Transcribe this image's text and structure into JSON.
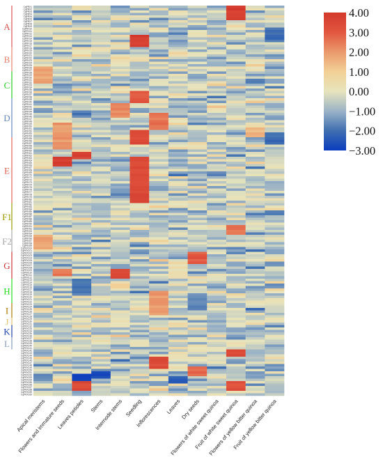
{
  "chart_data": {
    "type": "heatmap",
    "title": "",
    "xlabel": "",
    "ylabel": "",
    "columns": [
      "Apical meristems",
      "Flowers and immature seeds",
      "Leaves petioles",
      "Stems",
      "Internode stems",
      "Seedling",
      "Inflorescences",
      "Leaves",
      "Dry seeds",
      "Flowers of white sweet quinoa",
      "Fruit of white sweet quinoa",
      "Flowers of yellow bitter quinoa",
      "Fruit of yellow bitter quinoa"
    ],
    "row_count": 160,
    "row_label_prefix": "CqPRX",
    "groups": [
      {
        "label": "A",
        "color": "#d9534f",
        "start_row": 0,
        "end_row": 16
      },
      {
        "label": "B",
        "color": "#e8826b",
        "start_row": 17,
        "end_row": 26
      },
      {
        "label": "C",
        "color": "#22cc22",
        "start_row": 27,
        "end_row": 37
      },
      {
        "label": "D",
        "color": "#6688bb",
        "start_row": 38,
        "end_row": 53
      },
      {
        "label": "E",
        "color": "#e06050",
        "start_row": 54,
        "end_row": 80
      },
      {
        "label": "F1",
        "color": "#999900",
        "start_row": 81,
        "end_row": 91
      },
      {
        "label": "F2",
        "color": "#a8a8a8",
        "start_row": 92,
        "end_row": 100
      },
      {
        "label": "G",
        "color": "#cc3333",
        "start_row": 101,
        "end_row": 111
      },
      {
        "label": "H",
        "color": "#22dd22",
        "start_row": 112,
        "end_row": 121
      },
      {
        "label": "I",
        "color": "#aa7700",
        "start_row": 122,
        "end_row": 127
      },
      {
        "label": "J",
        "color": "#e0c070",
        "start_row": 128,
        "end_row": 130
      },
      {
        "label": "K",
        "color": "#2244aa",
        "start_row": 131,
        "end_row": 135
      },
      {
        "label": "L",
        "color": "#8899bb",
        "start_row": 136,
        "end_row": 140
      }
    ],
    "color_scale": {
      "min": -3.0,
      "max": 4.0,
      "ticks": [
        "4.00",
        "3.00",
        "2.00",
        "1.00",
        "0.00",
        "−1.00",
        "−2.00",
        "−3.00"
      ],
      "stops": [
        {
          "value": -3.0,
          "color": "#0a3cbe"
        },
        {
          "value": -2.0,
          "color": "#3f6fb0"
        },
        {
          "value": -1.0,
          "color": "#9bb3c6"
        },
        {
          "value": 0.0,
          "color": "#e7e4bd"
        },
        {
          "value": 1.0,
          "color": "#f2d096"
        },
        {
          "value": 2.0,
          "color": "#ea9a6c"
        },
        {
          "value": 3.0,
          "color": "#e2563f"
        },
        {
          "value": 4.0,
          "color": "#d2392c"
        }
      ]
    },
    "high_spots": [
      {
        "col": 5,
        "rows": [
          12,
          16
        ],
        "value": 3.8
      },
      {
        "col": 5,
        "rows": [
          51,
          56
        ],
        "value": 3.5
      },
      {
        "col": 5,
        "rows": [
          62,
          80
        ],
        "value": 3.4
      },
      {
        "col": 5,
        "rows": [
          35,
          39
        ],
        "value": 3.0
      },
      {
        "col": 1,
        "rows": [
          62,
          65
        ],
        "value": 3.8
      },
      {
        "col": 1,
        "rows": [
          48,
          58
        ],
        "value": 2.0
      },
      {
        "col": 2,
        "rows": [
          60,
          62
        ],
        "value": 3.6
      },
      {
        "col": 0,
        "rows": [
          25,
          31
        ],
        "value": 1.8
      },
      {
        "col": 0,
        "rows": [
          94,
          99
        ],
        "value": 1.8
      },
      {
        "col": 4,
        "rows": [
          108,
          111
        ],
        "value": 3.5
      },
      {
        "col": 4,
        "rows": [
          40,
          45
        ],
        "value": 2.2
      },
      {
        "col": 6,
        "rows": [
          44,
          50
        ],
        "value": 2.5
      },
      {
        "col": 6,
        "rows": [
          117,
          126
        ],
        "value": 2.0
      },
      {
        "col": 6,
        "rows": [
          144,
          148
        ],
        "value": 3.4
      },
      {
        "col": 8,
        "rows": [
          101,
          105
        ],
        "value": 3.0
      },
      {
        "col": 8,
        "rows": [
          148,
          151
        ],
        "value": 2.8
      },
      {
        "col": 10,
        "rows": [
          0,
          5
        ],
        "value": 3.8
      },
      {
        "col": 10,
        "rows": [
          90,
          93
        ],
        "value": 2.5
      },
      {
        "col": 10,
        "rows": [
          141,
          143
        ],
        "value": 3.3
      },
      {
        "col": 10,
        "rows": [
          154,
          157
        ],
        "value": 3.2
      },
      {
        "col": 2,
        "rows": [
          154,
          157
        ],
        "value": 3.4
      },
      {
        "col": 11,
        "rows": [
          50,
          53
        ],
        "value": 1.5
      },
      {
        "col": 1,
        "rows": [
          108,
          110
        ],
        "value": 2.5
      }
    ],
    "low_spots": [
      {
        "col": 2,
        "rows": [
          151,
          153
        ],
        "value": -2.8
      },
      {
        "col": 3,
        "rows": [
          150,
          152
        ],
        "value": -2.6
      },
      {
        "col": 7,
        "rows": [
          152,
          154
        ],
        "value": -2.5
      },
      {
        "col": 12,
        "rows": [
          9,
          14
        ],
        "value": -2.0
      },
      {
        "col": 12,
        "rows": [
          52,
          56
        ],
        "value": -2.0
      },
      {
        "col": 2,
        "rows": [
          112,
          118
        ],
        "value": -1.8
      },
      {
        "col": 8,
        "rows": [
          118,
          124
        ],
        "value": -1.6
      }
    ]
  }
}
